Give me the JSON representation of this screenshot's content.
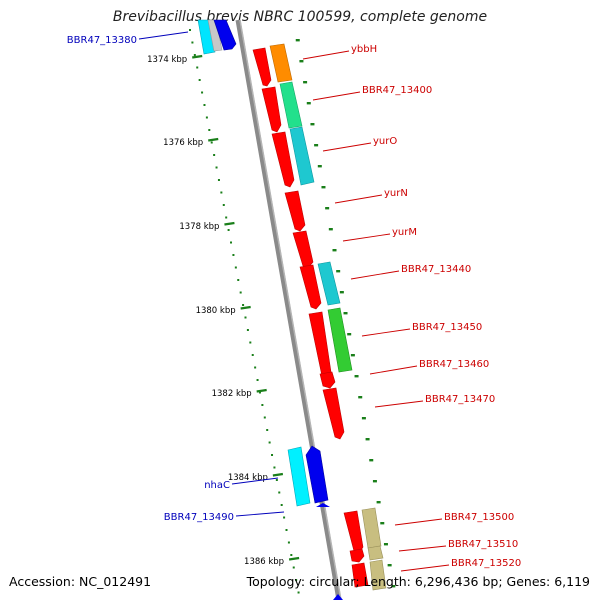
{
  "title": "Brevibacillus brevis NBRC 100599, complete genome",
  "footer": {
    "accession": "Accession: NC_012491",
    "summary": "Topology: circular; Length: 6,296,436 bp; Genes: 6,119"
  },
  "colors": {
    "backbone": "#8a8a8a",
    "tick": "#1a7f1a",
    "right_label": "#cc0000",
    "left_label": "#0000bb"
  },
  "ticks": [
    {
      "label": "1374 kbp",
      "pos": 1374
    },
    {
      "label": "1376 kbp",
      "pos": 1376
    },
    {
      "label": "1378 kbp",
      "pos": 1378
    },
    {
      "label": "1380 kbp",
      "pos": 1380
    },
    {
      "label": "1382 kbp",
      "pos": 1382
    },
    {
      "label": "1384 kbp",
      "pos": 1384
    },
    {
      "label": "1386 kbp",
      "pos": 1386
    }
  ],
  "labels_right": [
    "ybbH",
    "BBR47_13400",
    "yurO",
    "yurN",
    "yurM",
    "BBR47_13440",
    "BBR47_13450",
    "BBR47_13460",
    "BBR47_13470",
    "BBR47_13500",
    "BBR47_13510",
    "BBR47_13520"
  ],
  "labels_left": [
    "BBR47_13380",
    "nhaC",
    "BBR47_13490"
  ]
}
